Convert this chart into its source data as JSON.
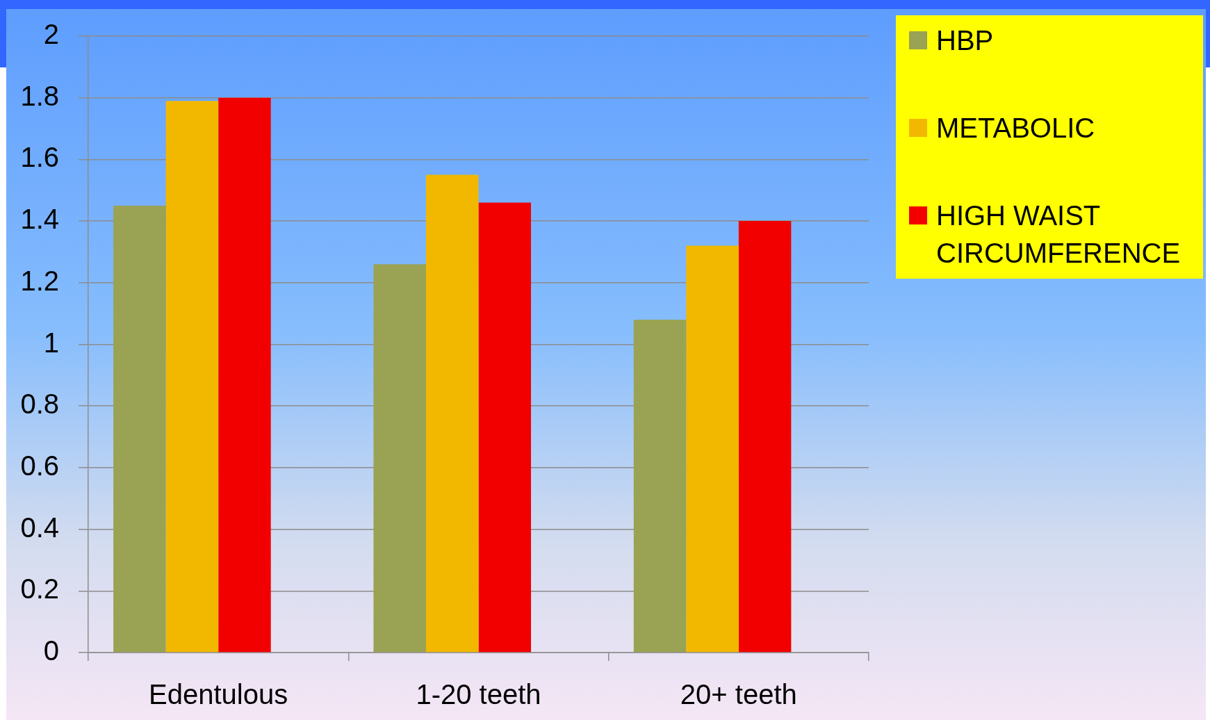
{
  "chart_data": {
    "type": "bar",
    "categories": [
      "Edentulous",
      "1-20 teeth",
      "20+ teeth"
    ],
    "series": [
      {
        "name": "HBP",
        "color": "#9aa253",
        "values": [
          1.45,
          1.26,
          1.08
        ]
      },
      {
        "name": "METABOLIC",
        "color": "#f2b800",
        "values": [
          1.79,
          1.55,
          1.32
        ]
      },
      {
        "name": "HIGH WAIST CIRCUMFERENCE",
        "color": "#f20000",
        "values": [
          1.8,
          1.46,
          1.4
        ]
      }
    ],
    "ylim": [
      0,
      2
    ],
    "yticks": [
      0,
      0.2,
      0.4,
      0.6,
      0.8,
      1,
      1.2,
      1.4,
      1.6,
      1.8,
      2
    ],
    "grid": "y",
    "legend": "top right"
  }
}
